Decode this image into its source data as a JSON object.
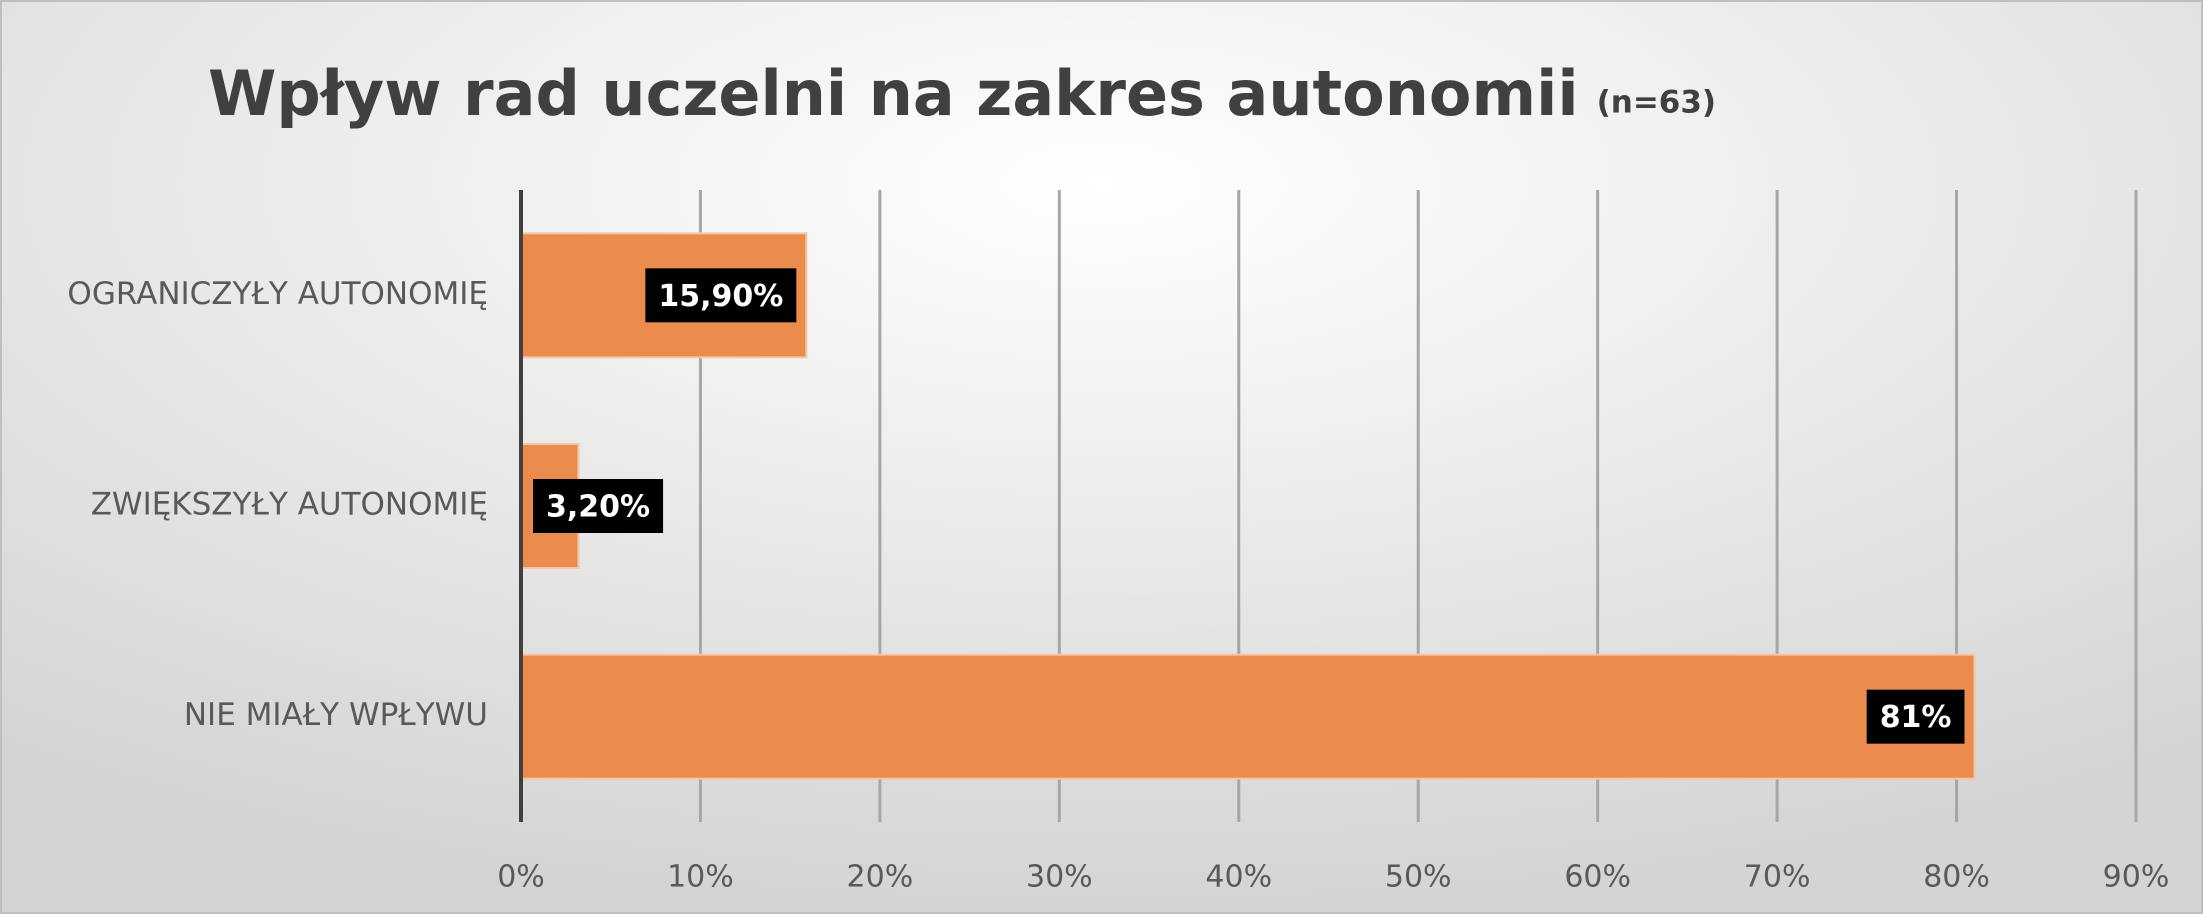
{
  "chart_data": {
    "type": "bar",
    "orientation": "horizontal",
    "title": "Wpływ rad uczelni na zakres autonomii",
    "title_note": "(n=63)",
    "categories": [
      "OGRANICZYŁY AUTONOMIĘ",
      "ZWIĘKSZYŁY AUTONOMIĘ",
      "NIE MIAŁY WPŁYWU"
    ],
    "values": [
      15.9,
      3.2,
      81
    ],
    "value_labels": [
      "15,90%",
      "3,20%",
      "81%"
    ],
    "color": "#eb8c4d",
    "xlim": [
      0,
      90
    ],
    "xticks": [
      {
        "value": 0,
        "label": "0%"
      },
      {
        "value": 10,
        "label": "10%"
      },
      {
        "value": 20,
        "label": "20%"
      },
      {
        "value": 30,
        "label": "30%"
      },
      {
        "value": 40,
        "label": "40%"
      },
      {
        "value": 50,
        "label": "50%"
      },
      {
        "value": 60,
        "label": "60%"
      },
      {
        "value": 70,
        "label": "70%"
      },
      {
        "value": 80,
        "label": "80%"
      },
      {
        "value": 90,
        "label": "90%"
      }
    ],
    "grid": true
  }
}
